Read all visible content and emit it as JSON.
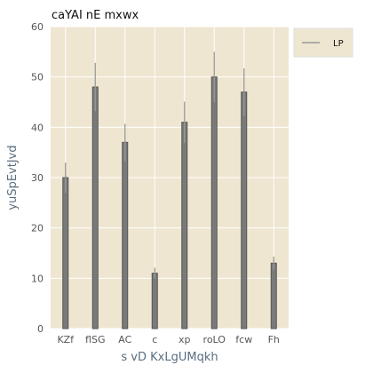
{
  "chart_data": {
    "type": "bar",
    "title": "caYAI nE mxwx",
    "xlabel": "s vD KxLgUMqkh",
    "ylabel": "yuSpEvtJvd",
    "categories": [
      "KZf",
      "flSG",
      "AC",
      "c",
      "xp",
      "roLO",
      "fcw",
      "Fh"
    ],
    "series": [
      {
        "name": "LP",
        "values": [
          30,
          48,
          37,
          11,
          41,
          50,
          47,
          13
        ],
        "errors": [
          3,
          4.8,
          3.7,
          1.1,
          4.1,
          5,
          4.7,
          1.3
        ]
      }
    ],
    "ylim": [
      0,
      60
    ],
    "yticks": [
      0,
      10,
      20,
      30,
      40,
      50,
      60
    ],
    "grid": true,
    "legend_position": "top-right",
    "colors": {
      "background": "#efe6d1",
      "grid": "#ffffff",
      "bar_fill": "#7a7a7a",
      "bar_edge": "#555555",
      "error": "#999999",
      "axis_text": "#555555",
      "label_text": "#5a6e7e"
    }
  }
}
